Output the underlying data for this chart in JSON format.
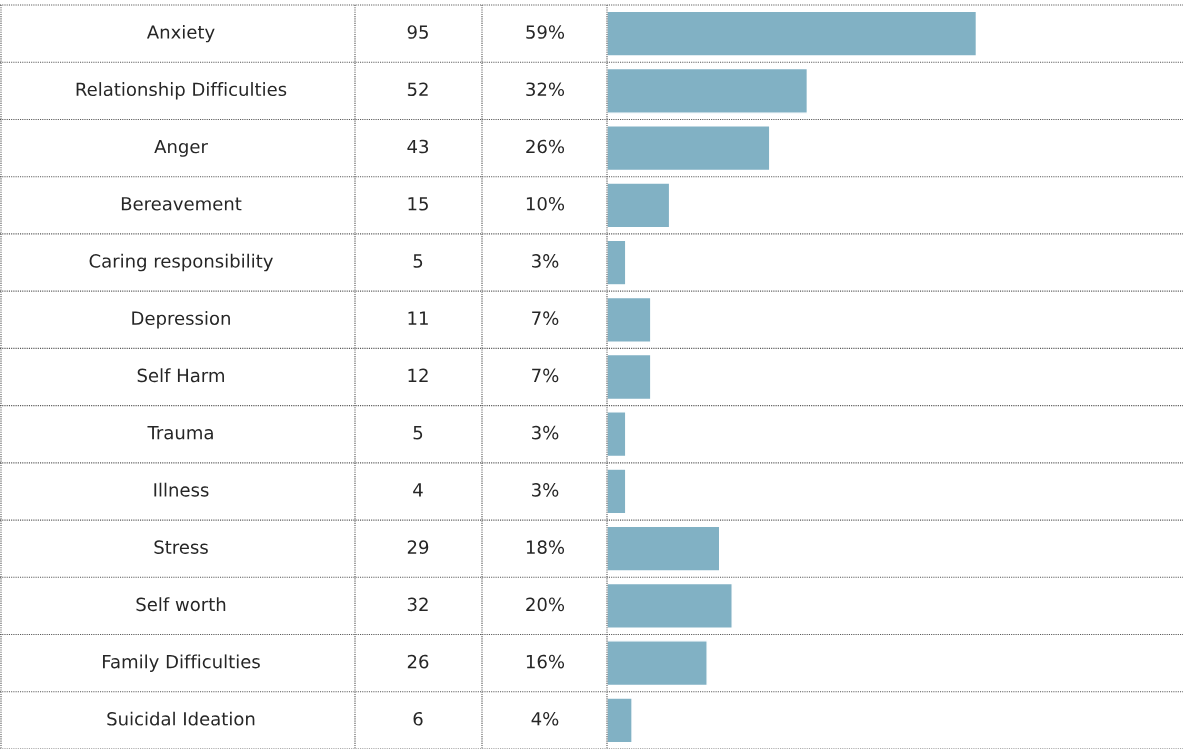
{
  "chart_data": {
    "type": "bar",
    "orientation": "horizontal",
    "categories": [
      "Anxiety",
      "Relationship Difficulties",
      "Anger",
      "Bereavement",
      "Caring responsibility",
      "Depression",
      "Self Harm",
      "Trauma",
      "Illness",
      "Stress",
      "Self worth",
      "Family Difficulties",
      "Suicidal Ideation"
    ],
    "values": [
      59,
      32,
      26,
      10,
      3,
      7,
      7,
      3,
      3,
      18,
      20,
      16,
      4
    ],
    "value_labels": [
      "59%",
      "32%",
      "26%",
      "10%",
      "3%",
      "7%",
      "7%",
      "3%",
      "3%",
      "18%",
      "20%",
      "16%",
      "4%"
    ],
    "color": "#81b1c4",
    "xlim": [
      0,
      92
    ],
    "tick_labels": "y",
    "grid": "y",
    "annotations": [
      "95",
      "52",
      "43",
      "15",
      "5",
      "11",
      "12",
      "5",
      "4",
      "29",
      "32",
      "26",
      "6"
    ]
  }
}
